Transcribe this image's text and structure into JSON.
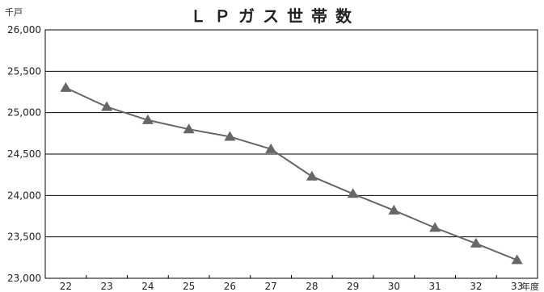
{
  "chart_data": {
    "type": "line",
    "title": "ＬＰガス世帯数",
    "ylabel": "千戸",
    "xlabel": "年度",
    "categories": [
      "22",
      "23",
      "24",
      "25",
      "26",
      "27",
      "28",
      "29",
      "30",
      "31",
      "32",
      "33"
    ],
    "ylim": [
      23000,
      26000
    ],
    "yticks": [
      "23,000",
      "23,500",
      "24,000",
      "24,500",
      "25,000",
      "25,500",
      "26,000"
    ],
    "series": [
      {
        "values": [
          25300,
          25070,
          24910,
          24800,
          24710,
          24560,
          24230,
          24020,
          23820,
          23610,
          23420,
          23220
        ]
      }
    ],
    "grid": true,
    "marker": "triangle",
    "line_color": "#666666"
  }
}
